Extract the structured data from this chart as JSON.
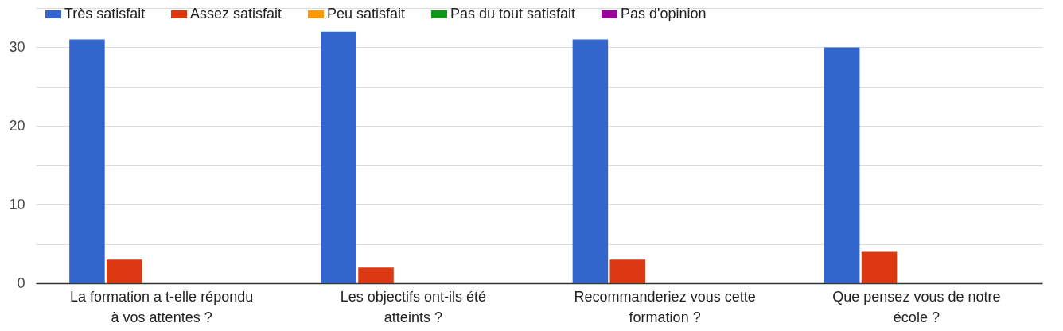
{
  "chart_data": {
    "type": "bar",
    "categories": [
      "La formation a t-elle répondu à vos attentes ?",
      "Les objectifs ont-ils été atteints ?",
      "Recommanderiez vous cette formation ?",
      "Que pensez vous de notre école ?"
    ],
    "series": [
      {
        "name": "Très satisfait",
        "color": "#3366cc",
        "values": [
          31,
          32,
          31,
          30
        ]
      },
      {
        "name": "Assez satisfait",
        "color": "#dc3912",
        "values": [
          3,
          2,
          3,
          4
        ]
      },
      {
        "name": "Peu satisfait",
        "color": "#ff9900",
        "values": [
          0,
          0,
          0,
          0
        ]
      },
      {
        "name": "Pas du tout satisfait",
        "color": "#109618",
        "values": [
          0,
          0,
          0,
          0
        ]
      },
      {
        "name": "Pas d'opinion",
        "color": "#990099",
        "values": [
          0,
          0,
          0,
          0
        ]
      }
    ],
    "ylim": [
      0,
      35
    ],
    "yticks": [
      0,
      {
        "value": 5,
        "label": null
      },
      10,
      {
        "value": 15,
        "label": null
      },
      20,
      {
        "value": 25,
        "label": null
      },
      30,
      {
        "value": 35,
        "label": null
      }
    ],
    "grid": true,
    "legend": "top left"
  }
}
